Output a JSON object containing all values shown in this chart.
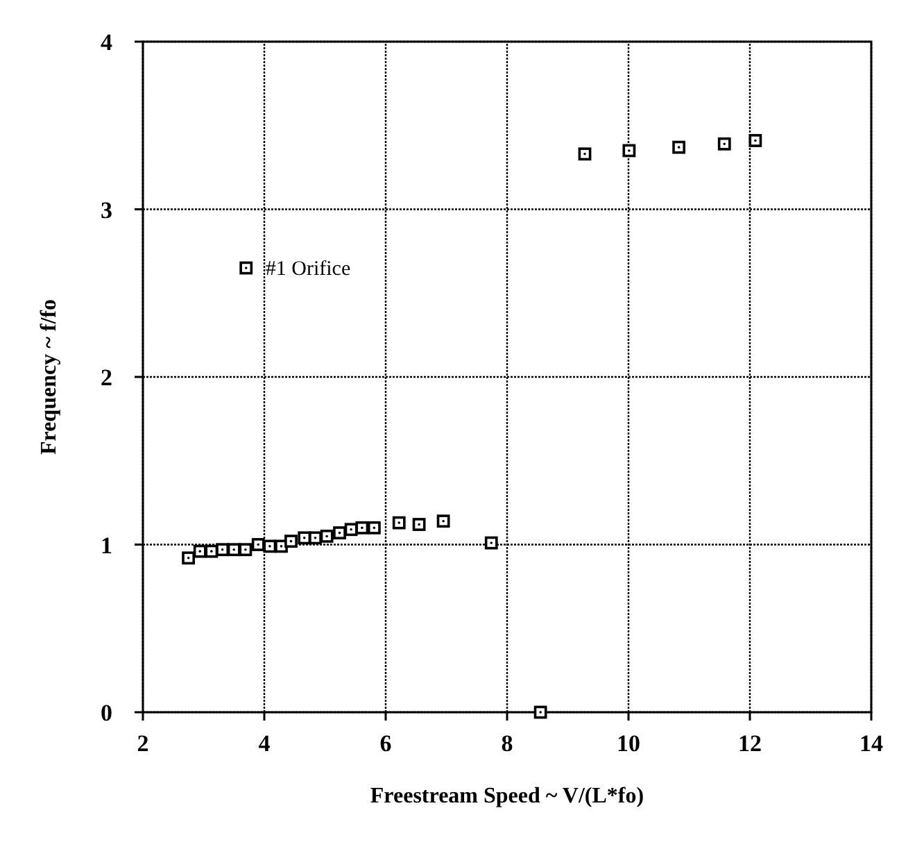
{
  "chart_data": {
    "type": "scatter",
    "xlabel": "Freestream Speed ~ V/(L*fo)",
    "ylabel": "Frequency ~ f/fo",
    "xlim": [
      2,
      14
    ],
    "xticks": [
      2,
      4,
      6,
      8,
      10,
      12,
      14
    ],
    "ylim": [
      0,
      4
    ],
    "yticks": [
      0,
      1,
      2,
      3,
      4
    ],
    "grid": true,
    "legend": "left",
    "marker": "square",
    "series": [
      {
        "name": "#1 Orifice",
        "color": "#000000",
        "x": [
          2.75,
          2.94,
          3.13,
          3.31,
          3.5,
          3.69,
          3.9,
          4.09,
          4.28,
          4.44,
          4.66,
          4.84,
          5.03,
          5.24,
          5.43,
          5.61,
          5.81,
          6.22,
          6.55,
          6.95,
          7.74,
          8.55,
          9.28,
          10.01,
          10.83,
          11.58,
          12.09
        ],
        "values": [
          0.92,
          0.96,
          0.96,
          0.97,
          0.97,
          0.97,
          1.0,
          0.99,
          0.99,
          1.02,
          1.04,
          1.04,
          1.05,
          1.07,
          1.09,
          1.1,
          1.1,
          1.13,
          1.12,
          1.14,
          1.01,
          0,
          3.33,
          3.35,
          3.37,
          3.39,
          3.41
        ]
      }
    ]
  }
}
